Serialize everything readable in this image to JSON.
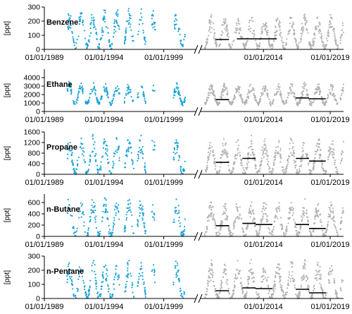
{
  "chart_data": [
    {
      "type": "scatter",
      "title": "Benzene",
      "ylabel": "[ppt]",
      "ylim": [
        0,
        300
      ],
      "yticks": [
        0,
        100,
        200,
        300
      ],
      "ytick_labels": [
        "0",
        "100",
        "200",
        "300"
      ],
      "xtick_labels": [
        "01/01/1989",
        "01/01/1994",
        "01/01/1999",
        "01/01/2014",
        "01/01/2019"
      ],
      "series": [
        {
          "period": "1989-2001",
          "color": "#1ba3d6",
          "seasonal": {
            "min": 20,
            "max": 270
          }
        },
        {
          "period": "2009-2020",
          "color": "#b3b3b3",
          "seasonal": {
            "min": 15,
            "max": 230
          }
        }
      ],
      "means": [
        {
          "x_start": "2010-06",
          "x_end": "2011-06",
          "y": 70
        },
        {
          "x_start": "2012-01",
          "x_end": "2015-01",
          "y": 75
        }
      ]
    },
    {
      "type": "scatter",
      "title": "Ethane",
      "ylabel": "[ppt]",
      "ylim": [
        0,
        5000
      ],
      "yticks": [
        0,
        1000,
        2000,
        3000,
        4000
      ],
      "ytick_labels": [
        "0",
        "1000",
        "2000",
        "3000",
        "4000"
      ],
      "xtick_labels": [
        "01/01/1989",
        "01/01/1994",
        "01/01/1999",
        "01/01/2014",
        "01/01/2019"
      ],
      "series": [
        {
          "period": "1989-2001",
          "color": "#1ba3d6",
          "seasonal": {
            "min": 900,
            "max": 3300
          }
        },
        {
          "period": "2009-2020",
          "color": "#b3b3b3",
          "seasonal": {
            "min": 900,
            "max": 3200
          }
        }
      ],
      "means": [
        {
          "x_start": "2010-06",
          "x_end": "2011-06",
          "y": 1400
        },
        {
          "x_start": "2016-06",
          "x_end": "2017-06",
          "y": 1600
        },
        {
          "x_start": "2017-06",
          "x_end": "2018-09",
          "y": 1500
        }
      ]
    },
    {
      "type": "scatter",
      "title": "Propane",
      "ylabel": "[ppt]",
      "ylim": [
        0,
        1600
      ],
      "yticks": [
        0,
        400,
        800,
        1200,
        1600
      ],
      "ytick_labels": [
        "0",
        "400",
        "800",
        "1200",
        "1600"
      ],
      "xtick_labels": [
        "01/01/1989",
        "01/01/1994",
        "01/01/1999",
        "01/01/2014",
        "01/01/2019"
      ],
      "series": [
        {
          "period": "1989-2001",
          "color": "#1ba3d6",
          "seasonal": {
            "min": 40,
            "max": 1400
          }
        },
        {
          "period": "2009-2020",
          "color": "#b3b3b3",
          "seasonal": {
            "min": 40,
            "max": 1300
          }
        }
      ],
      "means": [
        {
          "x_start": "2010-06",
          "x_end": "2011-06",
          "y": 450
        },
        {
          "x_start": "2012-06",
          "x_end": "2013-06",
          "y": 600
        },
        {
          "x_start": "2016-06",
          "x_end": "2017-06",
          "y": 600
        },
        {
          "x_start": "2017-06",
          "x_end": "2018-09",
          "y": 500
        }
      ]
    },
    {
      "type": "scatter",
      "title": "n-Butane",
      "ylabel": "[ppt]",
      "ylim": [
        0,
        750
      ],
      "yticks": [
        0,
        200,
        400,
        600
      ],
      "ytick_labels": [
        "0",
        "200",
        "400",
        "600"
      ],
      "xtick_labels": [
        "01/01/1989",
        "01/01/1994",
        "01/01/1999",
        "01/01/2014",
        "01/01/2019"
      ],
      "series": [
        {
          "period": "1989-2001",
          "color": "#1ba3d6",
          "seasonal": {
            "min": 20,
            "max": 650
          }
        },
        {
          "period": "2009-2020",
          "color": "#b3b3b3",
          "seasonal": {
            "min": 20,
            "max": 600
          }
        }
      ],
      "means": [
        {
          "x_start": "2010-06",
          "x_end": "2011-06",
          "y": 190
        },
        {
          "x_start": "2012-06",
          "x_end": "2013-06",
          "y": 230
        },
        {
          "x_start": "2013-06",
          "x_end": "2014-09",
          "y": 210
        },
        {
          "x_start": "2016-06",
          "x_end": "2017-06",
          "y": 210
        },
        {
          "x_start": "2017-06",
          "x_end": "2018-09",
          "y": 140
        }
      ]
    },
    {
      "type": "scatter",
      "title": "n-Pentane",
      "ylabel": "[ppt]",
      "ylim": [
        0,
        300
      ],
      "yticks": [
        0,
        100,
        200,
        300
      ],
      "ytick_labels": [
        "0",
        "100",
        "200",
        "300"
      ],
      "xtick_labels": [
        "01/01/1989",
        "01/01/1994",
        "01/01/1999",
        "01/01/2014",
        "01/01/2019"
      ],
      "series": [
        {
          "period": "1989-2001",
          "color": "#1ba3d6",
          "seasonal": {
            "min": 5,
            "max": 260
          }
        },
        {
          "period": "2009-2020",
          "color": "#b3b3b3",
          "seasonal": {
            "min": 5,
            "max": 250
          }
        }
      ],
      "means": [
        {
          "x_start": "2010-06",
          "x_end": "2011-06",
          "y": 55
        },
        {
          "x_start": "2012-06",
          "x_end": "2013-06",
          "y": 75
        },
        {
          "x_start": "2013-06",
          "x_end": "2014-09",
          "y": 70
        },
        {
          "x_start": "2016-06",
          "x_end": "2017-06",
          "y": 65
        },
        {
          "x_start": "2017-06",
          "x_end": "2018-09",
          "y": 40
        }
      ]
    }
  ],
  "colors": {
    "early_series": "#1ba3d6",
    "late_series": "#b3b3b3",
    "mean_line": "#000000",
    "axis": "#000000"
  }
}
